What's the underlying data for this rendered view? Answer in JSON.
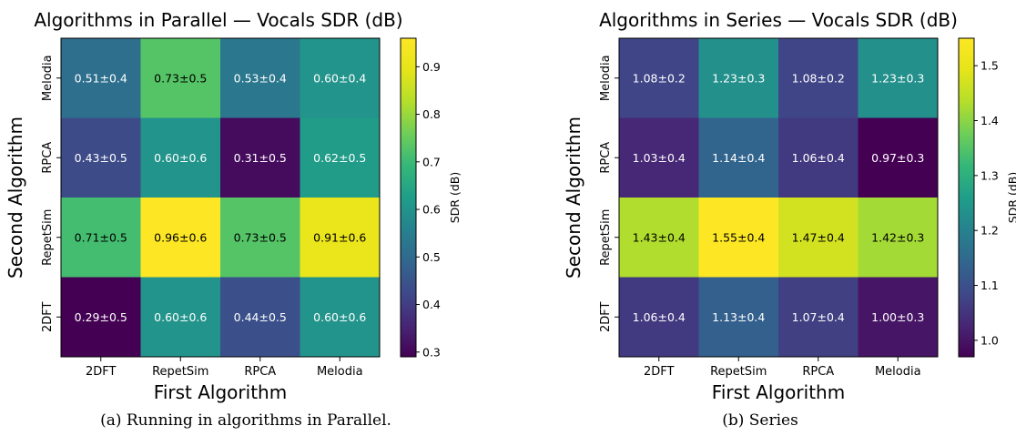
{
  "captions": [
    "(a) Running in algorithms in Parallel.",
    "(b) Series"
  ],
  "chart_data": [
    {
      "type": "heatmap",
      "title": "Algorithms in Parallel — Vocals SDR (dB)",
      "xlabel": "First Algorithm",
      "ylabel": "Second Algorithm",
      "x_categories": [
        "2DFT",
        "RepetSim",
        "RPCA",
        "Melodia"
      ],
      "y_categories": [
        "Melodia",
        "RPCA",
        "RepetSim",
        "2DFT"
      ],
      "colorbar_label": "SDR (dB)",
      "colorbar_ticks": [
        "0.3",
        "0.4",
        "0.5",
        "0.6",
        "0.7",
        "0.8",
        "0.9"
      ],
      "vmin": 0.29,
      "vmax": 0.96,
      "colormap": "viridis",
      "values": [
        [
          0.51,
          0.73,
          0.53,
          0.6
        ],
        [
          0.43,
          0.6,
          0.31,
          0.62
        ],
        [
          0.71,
          0.96,
          0.73,
          0.91
        ],
        [
          0.29,
          0.6,
          0.44,
          0.6
        ]
      ],
      "cell_labels": [
        [
          "0.51±0.4",
          "0.73±0.5",
          "0.53±0.4",
          "0.60±0.4"
        ],
        [
          "0.43±0.5",
          "0.60±0.6",
          "0.31±0.5",
          "0.62±0.5"
        ],
        [
          "0.71±0.5",
          "0.96±0.6",
          "0.73±0.5",
          "0.91±0.6"
        ],
        [
          "0.29±0.5",
          "0.60±0.6",
          "0.44±0.5",
          "0.60±0.6"
        ]
      ]
    },
    {
      "type": "heatmap",
      "title": "Algorithms in Series — Vocals SDR (dB)",
      "xlabel": "First Algorithm",
      "ylabel": "Second Algorithm",
      "x_categories": [
        "2DFT",
        "RepetSim",
        "RPCA",
        "Melodia"
      ],
      "y_categories": [
        "Melodia",
        "RPCA",
        "RepetSim",
        "2DFT"
      ],
      "colorbar_label": "SDR (dB)",
      "colorbar_ticks": [
        "1.0",
        "1.1",
        "1.2",
        "1.3",
        "1.4",
        "1.5"
      ],
      "vmin": 0.97,
      "vmax": 1.55,
      "colormap": "viridis",
      "values": [
        [
          1.08,
          1.23,
          1.08,
          1.23
        ],
        [
          1.03,
          1.14,
          1.06,
          0.97
        ],
        [
          1.43,
          1.55,
          1.47,
          1.42
        ],
        [
          1.06,
          1.13,
          1.07,
          1.0
        ]
      ],
      "cell_labels": [
        [
          "1.08±0.2",
          "1.23±0.3",
          "1.08±0.2",
          "1.23±0.3"
        ],
        [
          "1.03±0.4",
          "1.14±0.4",
          "1.06±0.4",
          "0.97±0.3"
        ],
        [
          "1.43±0.4",
          "1.55±0.4",
          "1.47±0.4",
          "1.42±0.3"
        ],
        [
          "1.06±0.4",
          "1.13±0.4",
          "1.07±0.4",
          "1.00±0.3"
        ]
      ]
    }
  ]
}
